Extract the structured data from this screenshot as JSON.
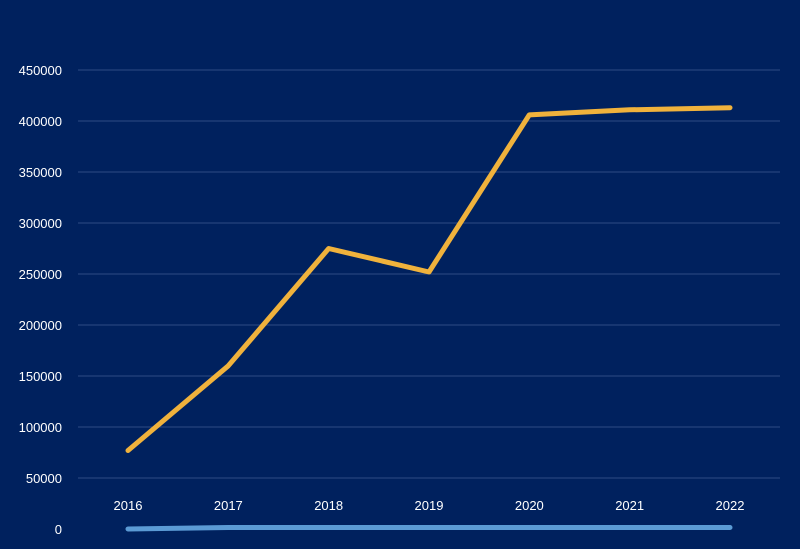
{
  "chart_data": {
    "type": "line",
    "title": "",
    "xlabel": "",
    "ylabel": "",
    "categories": [
      "2016",
      "2017",
      "2018",
      "2019",
      "2020",
      "2021",
      "2022"
    ],
    "ylim": [
      0,
      450000
    ],
    "yticks": [
      "0",
      "50000",
      "100000",
      "150000",
      "200000",
      "250000",
      "300000",
      "350000",
      "400000",
      "450000"
    ],
    "grid": true,
    "legend": "none",
    "series": [
      {
        "values": [
          77000,
          160000,
          275000,
          252000,
          406000,
          411000,
          413000
        ],
        "color": "#f0b23c"
      },
      {
        "values": [
          0,
          1500,
          1500,
          1500,
          1500,
          1500,
          1500
        ],
        "color": "#5b9bd5"
      }
    ],
    "colors": {
      "background": "#00215e",
      "gridline": "#2e4a84",
      "text": "#ffffff"
    }
  }
}
